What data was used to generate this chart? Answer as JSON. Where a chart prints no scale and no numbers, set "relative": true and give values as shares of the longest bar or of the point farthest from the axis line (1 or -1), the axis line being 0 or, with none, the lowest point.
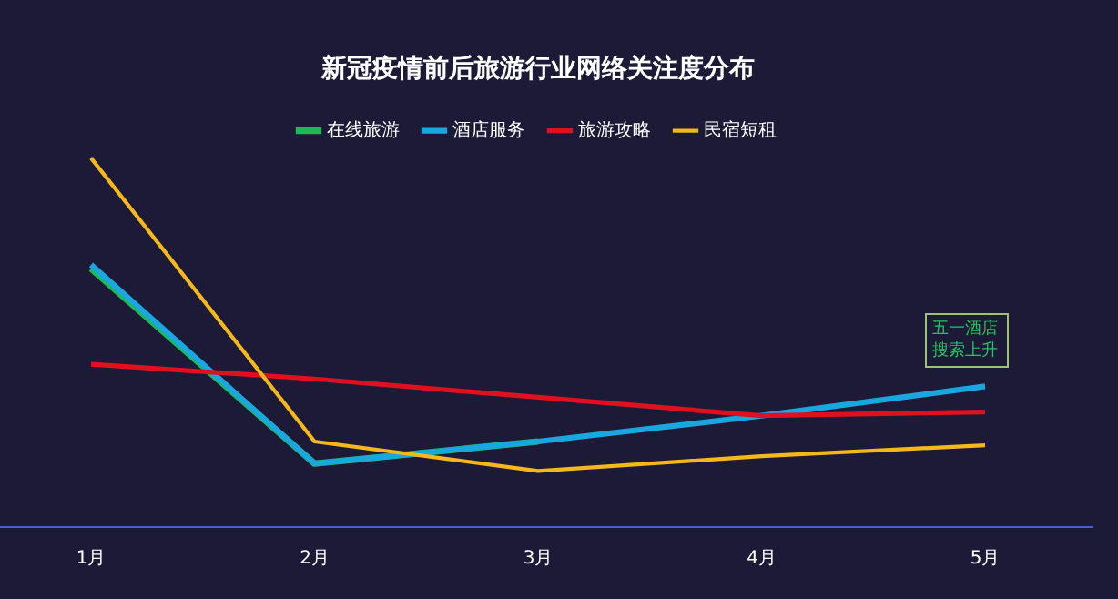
{
  "chart_data": {
    "type": "line",
    "title": "新冠疫情前后旅游行业网络关注度分布",
    "relative": true,
    "legend": "top",
    "grid": false,
    "marker": "none",
    "line_style": "solid",
    "categories": [
      "1月",
      "2月",
      "3月",
      "4月",
      "5月"
    ],
    "series": [
      {
        "name": "在线旅游",
        "color": "#1db954",
        "values": [
          0.7,
          0.17,
          0.23,
          null,
          null
        ]
      },
      {
        "name": "酒店服务",
        "color": "#1aa7e0",
        "values": [
          0.71,
          0.17,
          0.23,
          0.3,
          0.38
        ]
      },
      {
        "name": "旅游攻略",
        "color": "#e0101e",
        "values": [
          0.44,
          0.4,
          0.35,
          0.3,
          0.31
        ]
      },
      {
        "name": "民宿短租",
        "color": "#f5b81c",
        "values": [
          1,
          0.23,
          0.15,
          0.19,
          0.22
        ]
      }
    ],
    "annotations": [
      "五一酒店搜索上升"
    ]
  }
}
